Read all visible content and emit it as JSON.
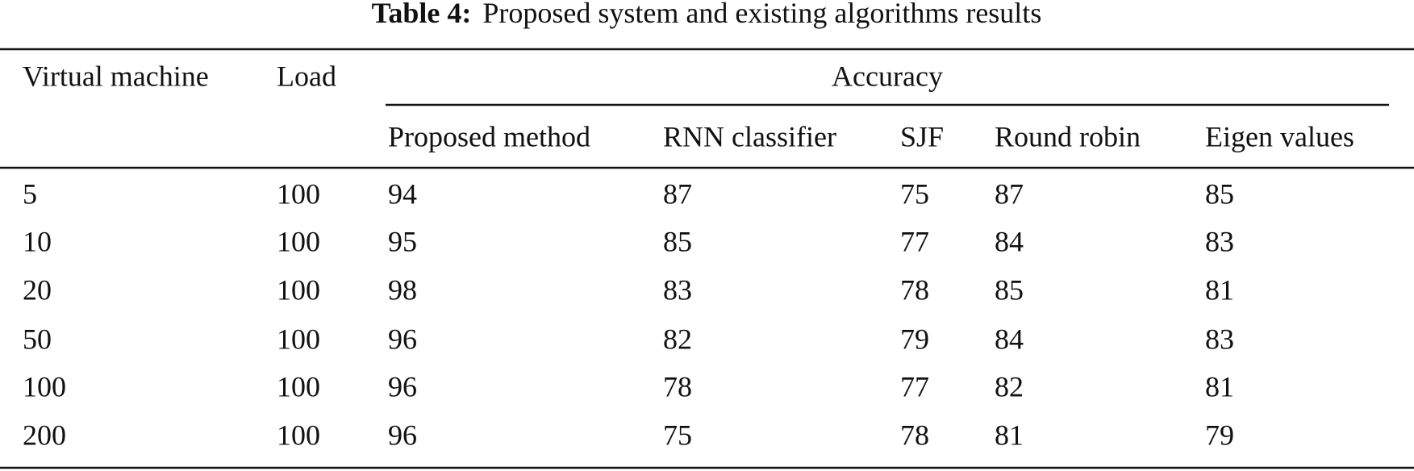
{
  "title": {
    "label": "Table 4:",
    "text": "Proposed system and existing algorithms results"
  },
  "table": {
    "header": [
      "Virtual machine",
      "Load"
    ],
    "group": "Accuracy",
    "subheader": [
      "Proposed method",
      "RNN classifier",
      "SJF",
      "Round robin",
      "Eigen values"
    ],
    "rows": [
      [
        5,
        100,
        94,
        87,
        75,
        87,
        85
      ],
      [
        10,
        100,
        95,
        85,
        77,
        84,
        83
      ],
      [
        20,
        100,
        98,
        83,
        78,
        85,
        81
      ],
      [
        50,
        100,
        96,
        82,
        79,
        84,
        83
      ],
      [
        100,
        100,
        96,
        78,
        77,
        82,
        81
      ],
      [
        200,
        100,
        96,
        75,
        78,
        81,
        79
      ]
    ]
  }
}
